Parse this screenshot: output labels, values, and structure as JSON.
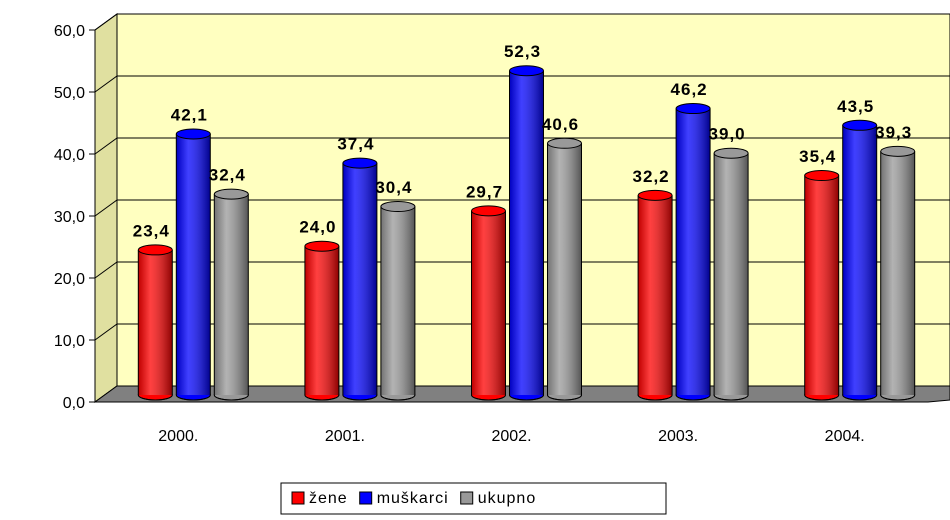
{
  "chart_data": {
    "type": "bar",
    "categories": [
      "2000.",
      "2001.",
      "2002.",
      "2003.",
      "2004."
    ],
    "series": [
      {
        "name": "žene",
        "color": "#ff0000",
        "values": [
          23.4,
          24.0,
          29.7,
          32.2,
          35.4
        ],
        "value_labels": [
          "23,4",
          "24,0",
          "29,7",
          "32,2",
          "35,4"
        ]
      },
      {
        "name": "muškarci",
        "color": "#0000ff",
        "values": [
          42.1,
          37.4,
          52.3,
          46.2,
          43.5
        ],
        "value_labels": [
          "42,1",
          "37,4",
          "52,3",
          "46,2",
          "43,5"
        ]
      },
      {
        "name": "ukupno",
        "color": "#999999",
        "values": [
          32.4,
          30.4,
          40.6,
          39.0,
          39.3
        ],
        "value_labels": [
          "32,4",
          "30,4",
          "40,6",
          "39,0",
          "39,3"
        ]
      }
    ],
    "ylim": [
      0,
      60
    ],
    "yticks": [
      {
        "value": 0,
        "label": "0,0"
      },
      {
        "value": 10,
        "label": "10,0"
      },
      {
        "value": 20,
        "label": "20,0"
      },
      {
        "value": 30,
        "label": "30,0"
      },
      {
        "value": 40,
        "label": "40,0"
      },
      {
        "value": 50,
        "label": "50,0"
      },
      {
        "value": 60,
        "label": "60,0"
      }
    ],
    "grid": true,
    "legend": "bottom"
  }
}
